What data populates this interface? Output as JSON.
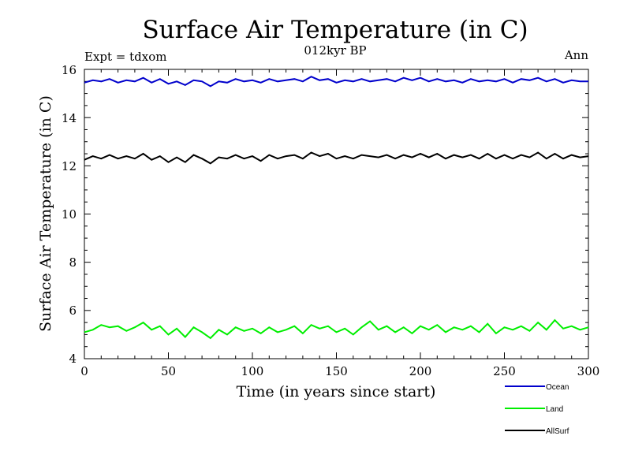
{
  "chart_data": {
    "type": "line",
    "title": "Surface Air Temperature (in C)",
    "subtitle": "012kyr BP",
    "top_left_label": "Expt = tdxom",
    "top_right_label": "Ann",
    "xlabel": "Time (in years since start)",
    "ylabel": "Surface Air Temperature (in C)",
    "xlim": [
      0,
      300
    ],
    "ylim": [
      4,
      16
    ],
    "x_ticks": [
      "0",
      "50",
      "100",
      "150",
      "200",
      "250",
      "300"
    ],
    "y_ticks": [
      "4",
      "6",
      "8",
      "10",
      "12",
      "14",
      "16"
    ],
    "grid": false,
    "legend_placement": "bottom-right",
    "x": [
      0,
      5,
      10,
      15,
      20,
      25,
      30,
      35,
      40,
      45,
      50,
      55,
      60,
      65,
      70,
      75,
      80,
      85,
      90,
      95,
      100,
      105,
      110,
      115,
      120,
      125,
      130,
      135,
      140,
      145,
      150,
      155,
      160,
      165,
      170,
      175,
      180,
      185,
      190,
      195,
      200,
      205,
      210,
      215,
      220,
      225,
      230,
      235,
      240,
      245,
      250,
      255,
      260,
      265,
      270,
      275,
      280,
      285,
      290,
      295,
      300
    ],
    "series": [
      {
        "name": "Ocean",
        "color": "#0000cc",
        "values": [
          15.45,
          15.55,
          15.5,
          15.6,
          15.45,
          15.55,
          15.5,
          15.65,
          15.45,
          15.6,
          15.4,
          15.5,
          15.35,
          15.55,
          15.5,
          15.3,
          15.5,
          15.45,
          15.6,
          15.5,
          15.55,
          15.45,
          15.6,
          15.5,
          15.55,
          15.6,
          15.5,
          15.7,
          15.55,
          15.6,
          15.45,
          15.55,
          15.5,
          15.6,
          15.5,
          15.55,
          15.6,
          15.5,
          15.65,
          15.55,
          15.65,
          15.5,
          15.6,
          15.5,
          15.55,
          15.45,
          15.6,
          15.5,
          15.55,
          15.5,
          15.6,
          15.45,
          15.6,
          15.55,
          15.65,
          15.5,
          15.6,
          15.45,
          15.55,
          15.5,
          15.5
        ]
      },
      {
        "name": "Land",
        "color": "#00ee00",
        "values": [
          5.1,
          5.2,
          5.4,
          5.3,
          5.35,
          5.15,
          5.3,
          5.5,
          5.2,
          5.35,
          5.0,
          5.25,
          4.9,
          5.3,
          5.1,
          4.85,
          5.2,
          5.0,
          5.3,
          5.15,
          5.25,
          5.05,
          5.3,
          5.1,
          5.2,
          5.35,
          5.05,
          5.4,
          5.25,
          5.35,
          5.1,
          5.25,
          5.0,
          5.3,
          5.55,
          5.2,
          5.35,
          5.1,
          5.3,
          5.05,
          5.35,
          5.2,
          5.4,
          5.1,
          5.3,
          5.2,
          5.35,
          5.1,
          5.45,
          5.05,
          5.3,
          5.2,
          5.35,
          5.15,
          5.5,
          5.2,
          5.6,
          5.25,
          5.35,
          5.2,
          5.3
        ]
      },
      {
        "name": "AllSurf",
        "color": "#000000",
        "values": [
          12.25,
          12.4,
          12.3,
          12.45,
          12.3,
          12.4,
          12.3,
          12.5,
          12.25,
          12.4,
          12.15,
          12.35,
          12.15,
          12.45,
          12.3,
          12.1,
          12.35,
          12.3,
          12.45,
          12.3,
          12.4,
          12.2,
          12.45,
          12.3,
          12.4,
          12.45,
          12.3,
          12.55,
          12.4,
          12.5,
          12.3,
          12.4,
          12.3,
          12.45,
          12.4,
          12.35,
          12.45,
          12.3,
          12.45,
          12.35,
          12.5,
          12.35,
          12.5,
          12.3,
          12.45,
          12.35,
          12.45,
          12.3,
          12.5,
          12.3,
          12.45,
          12.3,
          12.45,
          12.35,
          12.55,
          12.3,
          12.5,
          12.3,
          12.45,
          12.35,
          12.4
        ]
      }
    ]
  }
}
